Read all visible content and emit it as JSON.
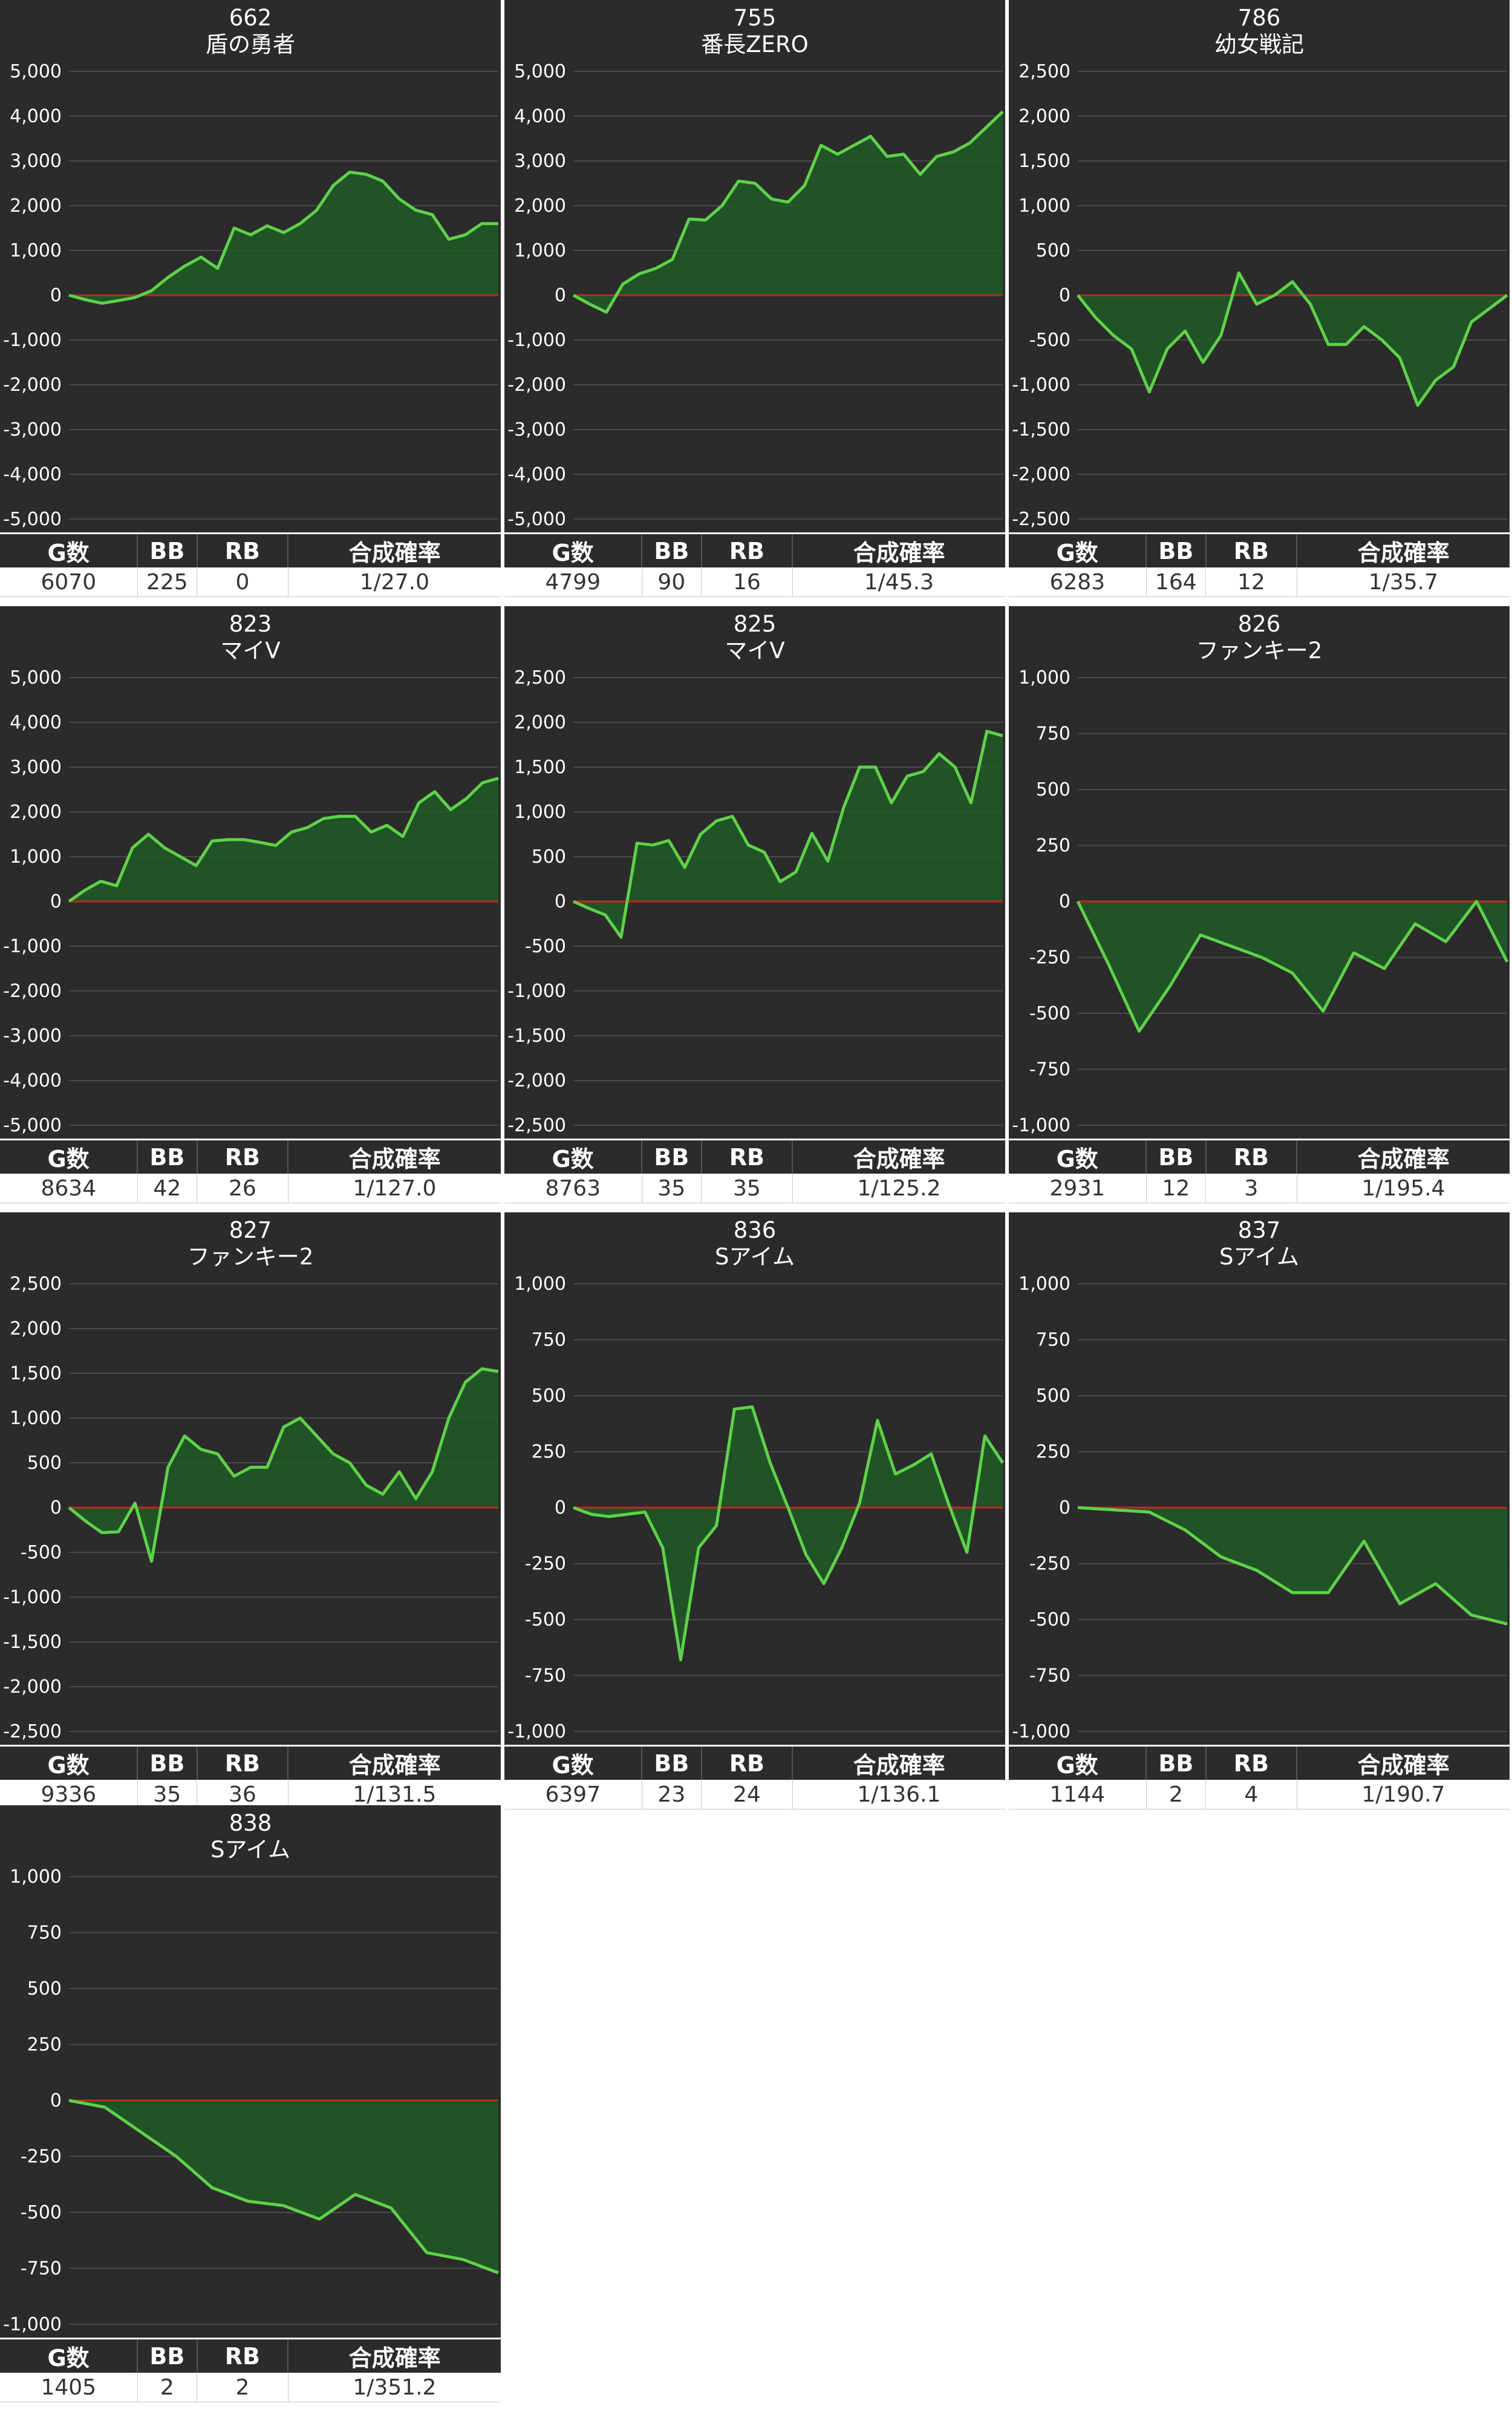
{
  "table_headers": {
    "games": "G数",
    "bb": "BB",
    "rb": "RB",
    "rate": "合成確率"
  },
  "colors": {
    "background": "#2b2b2b",
    "line": "#5fd14a",
    "fill": "#1f5c26",
    "zero_line": "#c0281e",
    "grid": "#4a4a4a"
  },
  "chart_data": [
    {
      "type": "area",
      "machine_no": "662",
      "machine_name": "盾の勇者",
      "ylim": [
        -5000,
        5000
      ],
      "yticks": [
        "5,000",
        "4,000",
        "3,000",
        "2,000",
        "1,000",
        "0",
        "-1,000",
        "-2,000",
        "-3,000",
        "-4,000",
        "-5,000"
      ],
      "grid": true,
      "values": [
        0,
        -100,
        -180,
        -120,
        -50,
        100,
        400,
        650,
        850,
        600,
        1500,
        1350,
        1550,
        1400,
        1600,
        1900,
        2450,
        2750,
        2700,
        2550,
        2150,
        1900,
        1800,
        1250,
        1350,
        1600,
        1600
      ],
      "stats": {
        "games": "6070",
        "bb": "225",
        "rb": "0",
        "rate": "1/27.0"
      }
    },
    {
      "type": "area",
      "machine_no": "755",
      "machine_name": "番長ZERO",
      "ylim": [
        -5000,
        5000
      ],
      "yticks": [
        "5,000",
        "4,000",
        "3,000",
        "2,000",
        "1,000",
        "0",
        "-1,000",
        "-2,000",
        "-3,000",
        "-4,000",
        "-5,000"
      ],
      "grid": true,
      "values": [
        0,
        -200,
        -380,
        250,
        480,
        600,
        800,
        1700,
        1680,
        2000,
        2550,
        2500,
        2150,
        2080,
        2450,
        3350,
        3150,
        3350,
        3550,
        3100,
        3150,
        2700,
        3100,
        3200,
        3400,
        3750,
        4100
      ],
      "stats": {
        "games": "4799",
        "bb": "90",
        "rb": "16",
        "rate": "1/45.3"
      }
    },
    {
      "type": "area",
      "machine_no": "786",
      "machine_name": "幼女戦記",
      "ylim": [
        -2500,
        2500
      ],
      "yticks": [
        "2,500",
        "2,000",
        "1,500",
        "1,000",
        "500",
        "0",
        "-500",
        "-1,000",
        "-1,500",
        "-2,000",
        "-2,500"
      ],
      "grid": true,
      "values": [
        0,
        -250,
        -450,
        -600,
        -1080,
        -600,
        -400,
        -750,
        -450,
        250,
        -100,
        0,
        150,
        -100,
        -550,
        -550,
        -350,
        -500,
        -700,
        -1230,
        -950,
        -800,
        -300,
        -150,
        0
      ],
      "stats": {
        "games": "6283",
        "bb": "164",
        "rb": "12",
        "rate": "1/35.7"
      }
    },
    {
      "type": "area",
      "machine_no": "823",
      "machine_name": "マイV",
      "ylim": [
        -5000,
        5000
      ],
      "yticks": [
        "5,000",
        "4,000",
        "3,000",
        "2,000",
        "1,000",
        "0",
        "-1,000",
        "-2,000",
        "-3,000",
        "-4,000",
        "-5,000"
      ],
      "grid": true,
      "values": [
        0,
        250,
        450,
        350,
        1200,
        1500,
        1200,
        1000,
        800,
        1350,
        1380,
        1380,
        1320,
        1250,
        1550,
        1650,
        1850,
        1900,
        1900,
        1550,
        1700,
        1450,
        2200,
        2450,
        2050,
        2300,
        2650,
        2750
      ],
      "stats": {
        "games": "8634",
        "bb": "42",
        "rb": "26",
        "rate": "1/127.0"
      }
    },
    {
      "type": "area",
      "machine_no": "825",
      "machine_name": "マイV",
      "ylim": [
        -2500,
        2500
      ],
      "yticks": [
        "2,500",
        "2,000",
        "1,500",
        "1,000",
        "500",
        "0",
        "-500",
        "-1,000",
        "-1,500",
        "-2,000",
        "-2,500"
      ],
      "grid": true,
      "values": [
        0,
        -80,
        -150,
        -400,
        650,
        630,
        680,
        380,
        750,
        900,
        950,
        630,
        550,
        220,
        330,
        760,
        450,
        1050,
        1500,
        1500,
        1100,
        1400,
        1450,
        1650,
        1500,
        1100,
        1900,
        1850
      ],
      "stats": {
        "games": "8763",
        "bb": "35",
        "rb": "35",
        "rate": "1/125.2"
      }
    },
    {
      "type": "area",
      "machine_no": "826",
      "machine_name": "ファンキー2",
      "ylim": [
        -1000,
        1000
      ],
      "yticks": [
        "1,000",
        "750",
        "500",
        "250",
        "0",
        "-250",
        "-500",
        "-750",
        "-1,000"
      ],
      "grid": true,
      "values": [
        0,
        -280,
        -580,
        -380,
        -150,
        -200,
        -250,
        -320,
        -490,
        -230,
        -300,
        -100,
        -180,
        0,
        -270
      ],
      "stats": {
        "games": "2931",
        "bb": "12",
        "rb": "3",
        "rate": "1/195.4"
      }
    },
    {
      "type": "area",
      "machine_no": "827",
      "machine_name": "ファンキー2",
      "ylim": [
        -2500,
        2500
      ],
      "yticks": [
        "2,500",
        "2,000",
        "1,500",
        "1,000",
        "500",
        "0",
        "-500",
        "-1,000",
        "-1,500",
        "-2,000",
        "-2,500"
      ],
      "grid": true,
      "values": [
        0,
        -150,
        -280,
        -270,
        50,
        -600,
        450,
        800,
        650,
        600,
        350,
        450,
        450,
        900,
        1000,
        800,
        600,
        500,
        250,
        150,
        400,
        100,
        400,
        1000,
        1400,
        1550,
        1520
      ],
      "stats": {
        "games": "9336",
        "bb": "35",
        "rb": "36",
        "rate": "1/131.5"
      }
    },
    {
      "type": "area",
      "machine_no": "836",
      "machine_name": "Sアイム",
      "ylim": [
        -1000,
        1000
      ],
      "yticks": [
        "1,000",
        "750",
        "500",
        "250",
        "0",
        "-250",
        "-500",
        "-750",
        "-1,000"
      ],
      "grid": true,
      "values": [
        0,
        -30,
        -40,
        -30,
        -20,
        -180,
        -680,
        -180,
        -80,
        440,
        450,
        200,
        0,
        -210,
        -340,
        -180,
        20,
        390,
        150,
        190,
        240,
        10,
        -200,
        320,
        200
      ],
      "stats": {
        "games": "6397",
        "bb": "23",
        "rb": "24",
        "rate": "1/136.1"
      }
    },
    {
      "type": "area",
      "machine_no": "837",
      "machine_name": "Sアイム",
      "ylim": [
        -1000,
        1000
      ],
      "yticks": [
        "1,000",
        "750",
        "500",
        "250",
        "0",
        "-250",
        "-500",
        "-750",
        "-1,000"
      ],
      "grid": true,
      "values": [
        0,
        -10,
        -20,
        -100,
        -220,
        -280,
        -380,
        -380,
        -150,
        -430,
        -340,
        -480,
        -520
      ],
      "stats": {
        "games": "1144",
        "bb": "2",
        "rb": "4",
        "rate": "1/190.7"
      }
    },
    {
      "type": "area",
      "machine_no": "838",
      "machine_name": "Sアイム",
      "ylim": [
        -1000,
        1000
      ],
      "yticks": [
        "1,000",
        "750",
        "500",
        "250",
        "0",
        "-250",
        "-500",
        "-750",
        "-1,000"
      ],
      "grid": true,
      "values": [
        0,
        -30,
        -140,
        -250,
        -390,
        -450,
        -470,
        -530,
        -420,
        -480,
        -680,
        -710,
        -770
      ],
      "stats": {
        "games": "1405",
        "bb": "2",
        "rb": "2",
        "rate": "1/351.2"
      }
    }
  ]
}
